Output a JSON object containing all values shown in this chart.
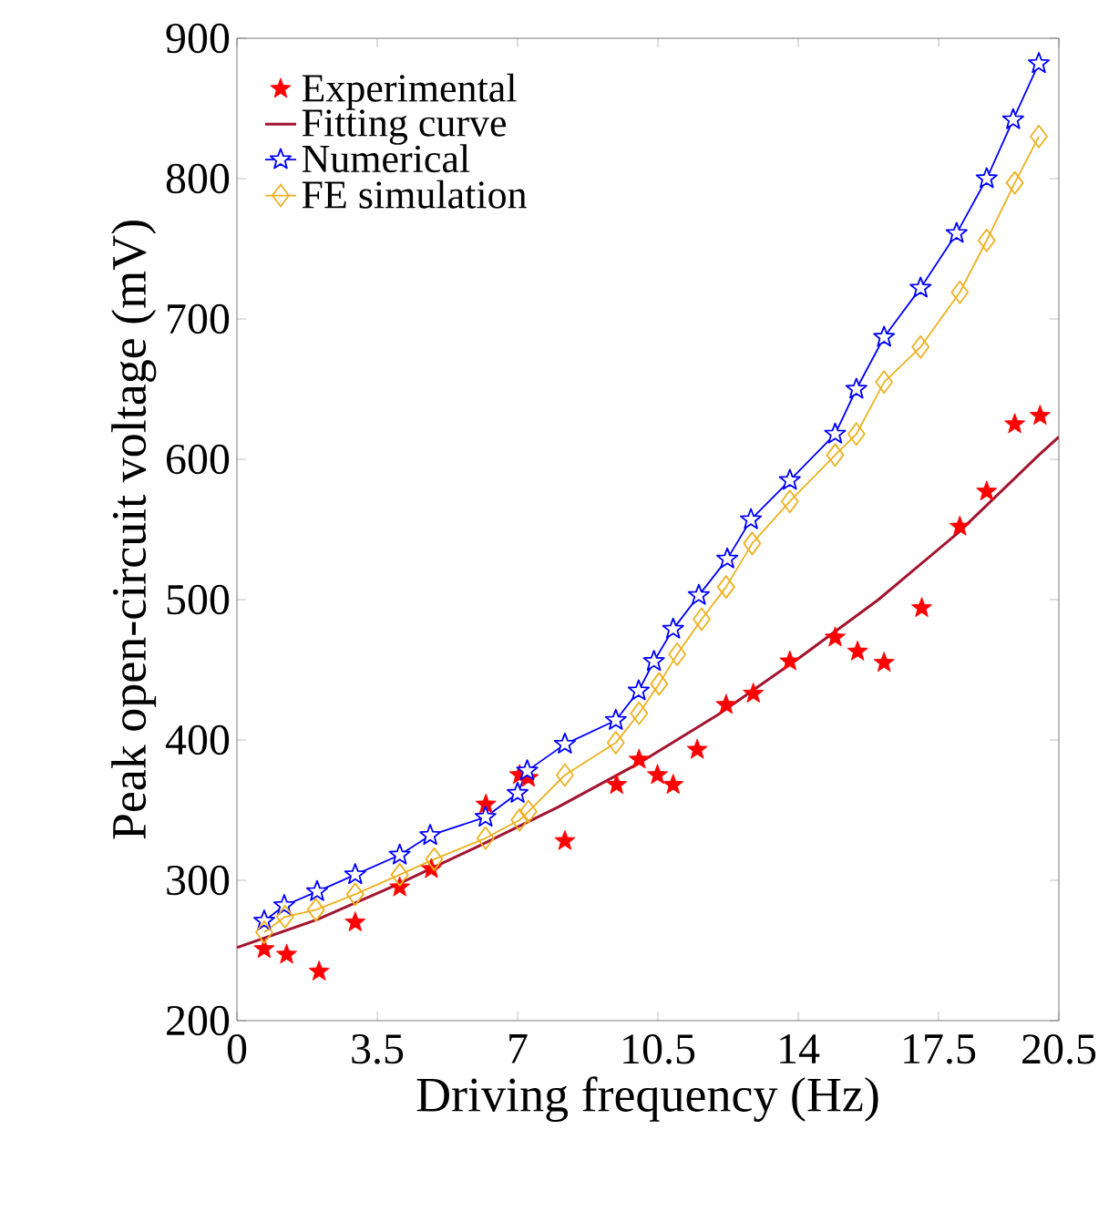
{
  "chart_data": {
    "type": "scatter",
    "xlabel": "Driving frequency (Hz)",
    "ylabel": "Peak open-circuit voltage (mV)",
    "xlim": [
      0,
      20.5
    ],
    "ylim": [
      200,
      900
    ],
    "xticks": [
      0,
      3.5,
      7,
      10.5,
      14,
      17.5,
      20.5
    ],
    "yticks": [
      200,
      300,
      400,
      500,
      600,
      700,
      800,
      900
    ],
    "legend": "top left",
    "grid": false,
    "series": [
      {
        "name": "Experimental",
        "marker": "star",
        "color": "#ff0000",
        "x": [
          0.68,
          1.24,
          2.05,
          2.95,
          4.06,
          4.85,
          6.21,
          7.05,
          7.27,
          8.18,
          9.47,
          10.03,
          10.49,
          10.88,
          11.48,
          12.2,
          12.88,
          13.79,
          14.92,
          15.48,
          16.14,
          17.08,
          18.03,
          18.7,
          19.4,
          20.03
        ],
        "values": [
          251,
          247,
          235,
          270,
          295,
          308,
          354,
          375,
          373,
          328,
          368,
          386,
          375,
          368,
          393,
          425,
          433,
          456,
          473,
          463,
          455,
          494,
          552,
          577,
          625,
          631
        ]
      },
      {
        "name": "Fitting curve",
        "type": "line",
        "marker": "none",
        "color": "#a2142f",
        "x": [
          0,
          2,
          4,
          6,
          8,
          10,
          12,
          14,
          16,
          18,
          20,
          20.5
        ],
        "values": [
          252,
          272,
          297,
          324,
          352,
          383,
          418,
          458,
          500,
          548,
          603,
          616
        ]
      },
      {
        "name": "Numerical",
        "type": "line",
        "marker": "star",
        "color": "#0000ff",
        "x": [
          0.68,
          1.18,
          2.0,
          2.95,
          4.06,
          4.82,
          6.2,
          7.0,
          7.24,
          8.18,
          9.45,
          10.02,
          10.4,
          10.88,
          11.52,
          12.23,
          12.82,
          13.79,
          14.92,
          15.45,
          16.14,
          17.05,
          17.95,
          18.7,
          19.36,
          20.0
        ],
        "values": [
          271,
          282,
          292,
          304,
          318,
          332,
          345,
          362,
          378,
          397,
          414,
          435,
          456,
          479,
          503,
          529,
          557,
          585,
          618,
          650,
          687,
          722,
          761,
          800,
          842,
          882
        ]
      },
      {
        "name": "FE simulation",
        "type": "line",
        "marker": "diamond",
        "color": "#edb120",
        "x": [
          0.68,
          1.2,
          1.97,
          2.95,
          4.06,
          4.92,
          6.2,
          7.05,
          7.27,
          8.18,
          9.45,
          10.03,
          10.53,
          10.98,
          11.59,
          12.2,
          12.85,
          13.79,
          14.92,
          15.45,
          16.14,
          17.05,
          18.03,
          18.7,
          19.4,
          20.0
        ],
        "values": [
          263,
          274,
          279,
          290,
          304,
          315,
          330,
          343,
          349,
          375,
          398,
          419,
          440,
          461,
          486,
          509,
          540,
          570,
          603,
          618,
          655,
          680,
          719,
          756,
          797,
          830
        ]
      }
    ]
  }
}
